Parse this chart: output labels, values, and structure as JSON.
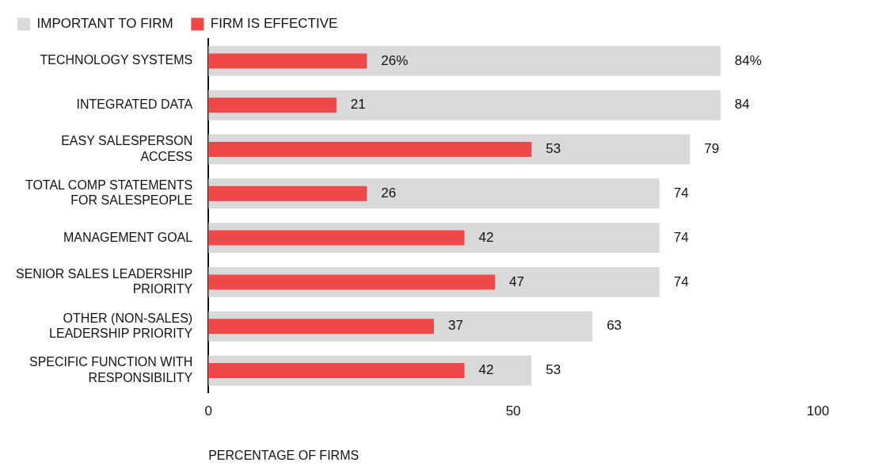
{
  "chart_data": {
    "type": "bar",
    "orientation": "horizontal",
    "categories": [
      "TECHNOLOGY SYSTEMS",
      "INTEGRATED DATA",
      "EASY SALESPERSON\nACCESS",
      "TOTAL COMP STATEMENTS\nFOR SALESPEOPLE",
      "MANAGEMENT GOAL",
      "SENIOR SALES LEADERSHIP\nPRIORITY",
      "OTHER (NON-SALES)\nLEADERSHIP PRIORITY",
      "SPECIFIC FUNCTION WITH\nRESPONSIBILITY"
    ],
    "series": [
      {
        "name": "IMPORTANT TO FIRM",
        "color": "#d9d9d9",
        "values": [
          84,
          84,
          79,
          74,
          74,
          74,
          63,
          53
        ],
        "value_labels": [
          "84%",
          "84",
          "79",
          "74",
          "74",
          "74",
          "63",
          "53"
        ]
      },
      {
        "name": "FIRM IS EFFECTIVE",
        "color": "#ef4848",
        "values": [
          26,
          21,
          53,
          26,
          42,
          47,
          37,
          42
        ],
        "value_labels": [
          "26%",
          "21",
          "53",
          "26",
          "42",
          "47",
          "37",
          "42"
        ]
      }
    ],
    "xlabel": "PERCENTAGE OF FIRMS",
    "xlim": [
      0,
      100
    ],
    "xticks": [
      0,
      50,
      100
    ],
    "grid": false,
    "legend": "top left"
  }
}
